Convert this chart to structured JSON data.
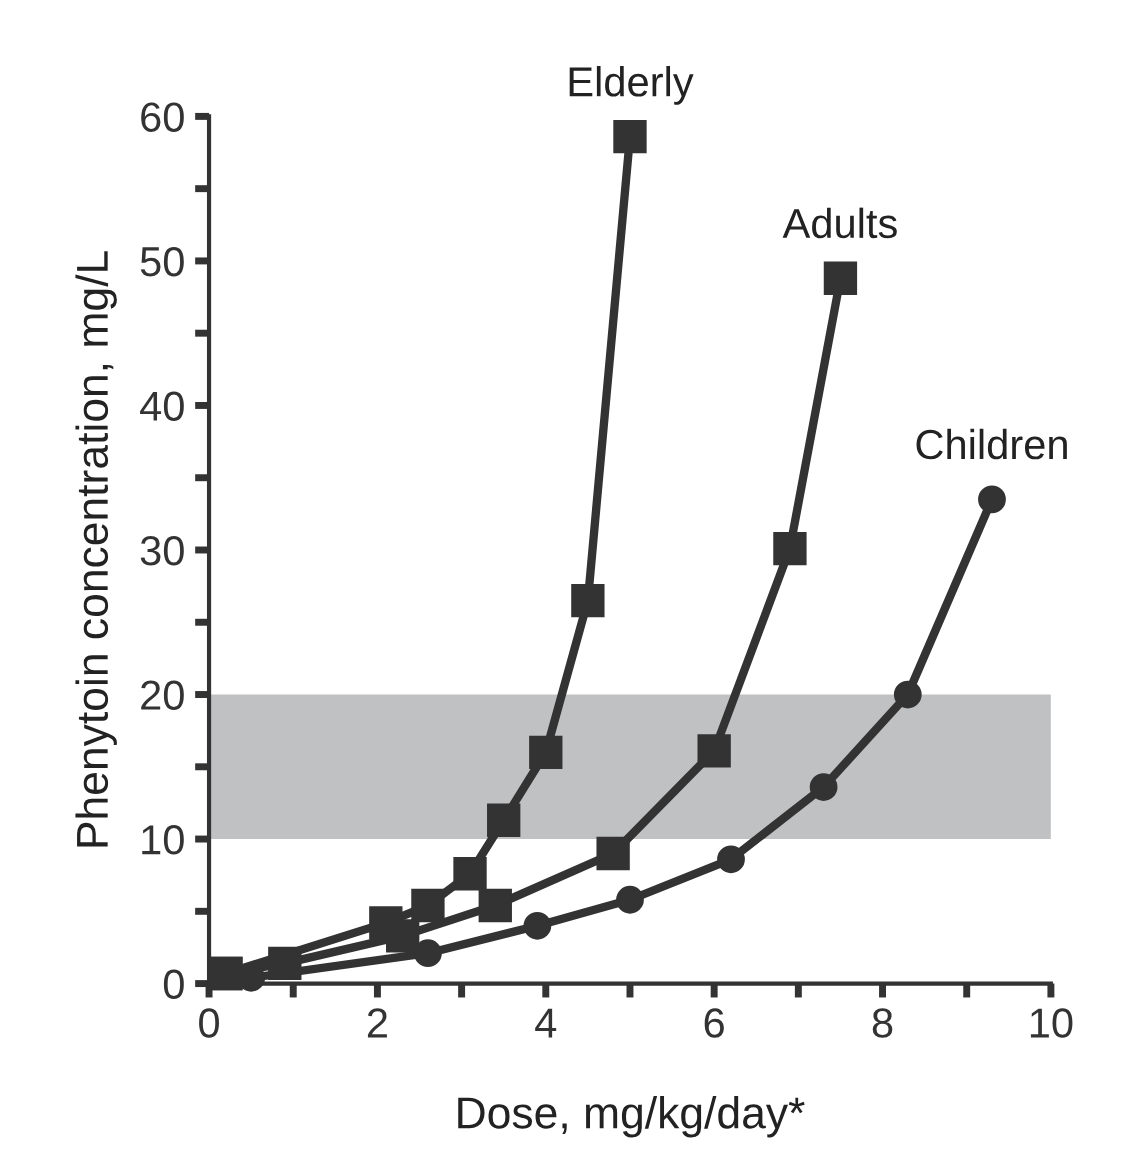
{
  "chart_data": {
    "type": "line",
    "xlabel": "Dose, mg/kg/day*",
    "ylabel": "Phenytoin concentration, mg/L",
    "xlim": [
      0,
      10
    ],
    "ylim": [
      0,
      60
    ],
    "xticks": [
      0,
      {
        "value": 1,
        "label": null
      },
      2,
      {
        "value": 3,
        "label": null
      },
      4,
      {
        "value": 5,
        "label": null
      },
      6,
      {
        "value": 7,
        "label": null
      },
      8,
      {
        "value": 9,
        "label": null
      },
      10
    ],
    "yticks": [
      0,
      {
        "value": 5,
        "label": null
      },
      10,
      {
        "value": 15,
        "label": null
      },
      20,
      {
        "value": 25,
        "label": null
      },
      30,
      {
        "value": 35,
        "label": null
      },
      40,
      {
        "value": 45,
        "label": null
      },
      50,
      {
        "value": 55,
        "label": null
      },
      60
    ],
    "grid": false,
    "legend": false,
    "line_style": "solid",
    "bands": [
      {
        "axis": "y",
        "from": 10,
        "to": 20,
        "color": "#c0c1c3"
      }
    ],
    "series": [
      {
        "name": "Elderly",
        "color": "#333333",
        "marker": "square",
        "x": [
          0.2,
          2.1,
          2.6,
          3.1,
          3.5,
          4.0,
          4.5,
          5.0
        ],
        "values": [
          0.7,
          4.2,
          5.4,
          7.6,
          11.3,
          16,
          26.5,
          58.6
        ]
      },
      {
        "name": "Adults",
        "color": "#333333",
        "marker": "square",
        "x": [
          0.2,
          0.9,
          2.3,
          3.4,
          4.8,
          6.0,
          6.9,
          7.5
        ],
        "values": [
          0.7,
          1.4,
          3.3,
          5.4,
          9.0,
          16.1,
          30.1,
          48.8
        ]
      },
      {
        "name": "Children",
        "color": "#333333",
        "marker": "circle",
        "x": [
          0.5,
          2.6,
          3.9,
          5.0,
          6.2,
          7.3,
          8.3,
          9.3
        ],
        "values": [
          0.4,
          2.1,
          4.0,
          5.8,
          8.6,
          13.6,
          20,
          33.5
        ]
      }
    ]
  }
}
